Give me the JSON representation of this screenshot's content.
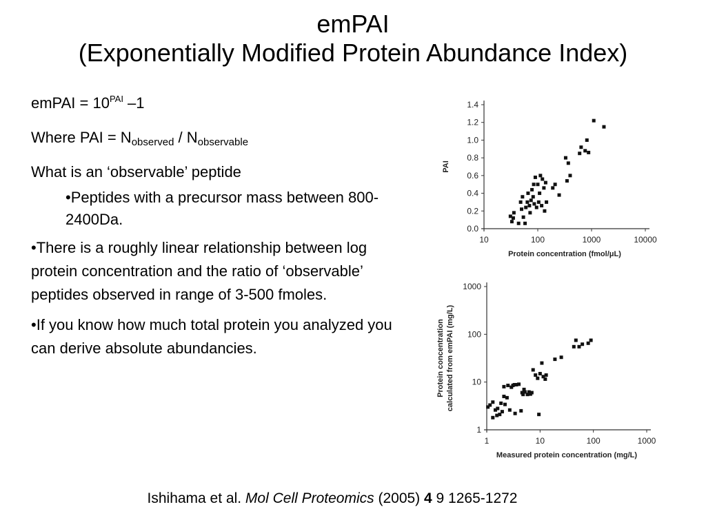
{
  "title": {
    "line1": "emPAI",
    "line2": "(Exponentially Modified Protein Abundance Index)"
  },
  "formula": {
    "lhs": "emPAI = 10",
    "exponent": "PAI",
    "rhs": " –1"
  },
  "definition": {
    "prefix": "Where PAI = N",
    "sub1": "observed",
    "mid": " / N",
    "sub2": "observable"
  },
  "question": "What is an ‘observable’ peptide",
  "sub_bullet": "•Peptides with a precursor mass between 800-2400Da.",
  "bullets": [
    "•There is a roughly linear relationship between log protein concentration and the ratio of ‘observable’ peptides observed in range of 3-500 fmoles.",
    "•If you know how much total protein you analyzed you can derive absolute abundancies."
  ],
  "citation": {
    "authors": "Ishihama et al. ",
    "journal": "Mol Cell Proteomics",
    "year": " (2005) ",
    "volume": "4",
    "pages": " 9 1265-1272"
  },
  "chart_data": [
    {
      "type": "scatter",
      "xlabel": "Protein concentration (fmol/μL)",
      "ylabel": "PAI",
      "x_scale": "log",
      "xlim": [
        10,
        10000
      ],
      "ylim": [
        0,
        1.4
      ],
      "x_ticks": [
        "10",
        "100",
        "1000",
        "10000"
      ],
      "y_ticks": [
        "0.0",
        "0.2",
        "0.4",
        "0.6",
        "0.8",
        "1.0",
        "1.2",
        "1.4"
      ],
      "points": [
        [
          31,
          0.14
        ],
        [
          33,
          0.08
        ],
        [
          35,
          0.12
        ],
        [
          36,
          0.18
        ],
        [
          44,
          0.06
        ],
        [
          48,
          0.3
        ],
        [
          50,
          0.22
        ],
        [
          52,
          0.36
        ],
        [
          54,
          0.13
        ],
        [
          58,
          0.06
        ],
        [
          60,
          0.24
        ],
        [
          64,
          0.3
        ],
        [
          66,
          0.4
        ],
        [
          70,
          0.26
        ],
        [
          72,
          0.18
        ],
        [
          75,
          0.32
        ],
        [
          78,
          0.44
        ],
        [
          82,
          0.36
        ],
        [
          84,
          0.5
        ],
        [
          86,
          0.28
        ],
        [
          90,
          0.58
        ],
        [
          95,
          0.24
        ],
        [
          100,
          0.5
        ],
        [
          104,
          0.3
        ],
        [
          108,
          0.4
        ],
        [
          112,
          0.6
        ],
        [
          118,
          0.26
        ],
        [
          122,
          0.56
        ],
        [
          130,
          0.46
        ],
        [
          134,
          0.2
        ],
        [
          140,
          0.52
        ],
        [
          145,
          0.3
        ],
        [
          190,
          0.46
        ],
        [
          210,
          0.5
        ],
        [
          250,
          0.38
        ],
        [
          330,
          0.8
        ],
        [
          350,
          0.54
        ],
        [
          370,
          0.74
        ],
        [
          400,
          0.6
        ],
        [
          600,
          0.85
        ],
        [
          640,
          0.92
        ],
        [
          760,
          0.88
        ],
        [
          820,
          1.0
        ],
        [
          880,
          0.86
        ],
        [
          1100,
          1.22
        ],
        [
          1700,
          1.15
        ]
      ]
    },
    {
      "type": "scatter",
      "xlabel": "Measured protein concentration (mg/L)",
      "ylabel": "Protein concentration calculated from emPAI (mg/L)",
      "x_scale": "log",
      "y_scale": "log",
      "xlim": [
        1,
        1000
      ],
      "ylim": [
        1,
        1000
      ],
      "x_ticks": [
        "1",
        "10",
        "100",
        "1000"
      ],
      "y_ticks": [
        "1",
        "10",
        "100",
        "1000"
      ],
      "points": [
        [
          1.05,
          3.0
        ],
        [
          1.15,
          3.3
        ],
        [
          1.3,
          1.8
        ],
        [
          1.3,
          3.8
        ],
        [
          1.45,
          2.6
        ],
        [
          1.55,
          2.0
        ],
        [
          1.6,
          2.8
        ],
        [
          1.75,
          2.1
        ],
        [
          1.85,
          3.6
        ],
        [
          1.95,
          2.4
        ],
        [
          2.1,
          8.0
        ],
        [
          2.1,
          5.0
        ],
        [
          2.2,
          3.4
        ],
        [
          2.4,
          4.7
        ],
        [
          2.5,
          8.5
        ],
        [
          2.7,
          2.6
        ],
        [
          2.9,
          7.8
        ],
        [
          3.1,
          8.5
        ],
        [
          3.3,
          8.8
        ],
        [
          3.4,
          2.2
        ],
        [
          3.6,
          8.8
        ],
        [
          4.0,
          9.0
        ],
        [
          4.4,
          2.5
        ],
        [
          4.6,
          6.0
        ],
        [
          4.8,
          5.5
        ],
        [
          5.0,
          7.0
        ],
        [
          5.2,
          6.2
        ],
        [
          5.8,
          5.5
        ],
        [
          6.2,
          6.2
        ],
        [
          6.6,
          5.6
        ],
        [
          7.0,
          6.0
        ],
        [
          7.4,
          18.0
        ],
        [
          8.2,
          14.0
        ],
        [
          9.0,
          12.0
        ],
        [
          9.5,
          2.1
        ],
        [
          10.0,
          15.0
        ],
        [
          10.8,
          25.0
        ],
        [
          11.5,
          13.0
        ],
        [
          12.5,
          11.5
        ],
        [
          13.0,
          14.0
        ],
        [
          19.0,
          30.0
        ],
        [
          25.0,
          33.0
        ],
        [
          43.0,
          55.0
        ],
        [
          47.0,
          75.0
        ],
        [
          54.0,
          55.0
        ],
        [
          62.0,
          62.0
        ],
        [
          80.0,
          65.0
        ],
        [
          90.0,
          75.0
        ]
      ]
    }
  ]
}
